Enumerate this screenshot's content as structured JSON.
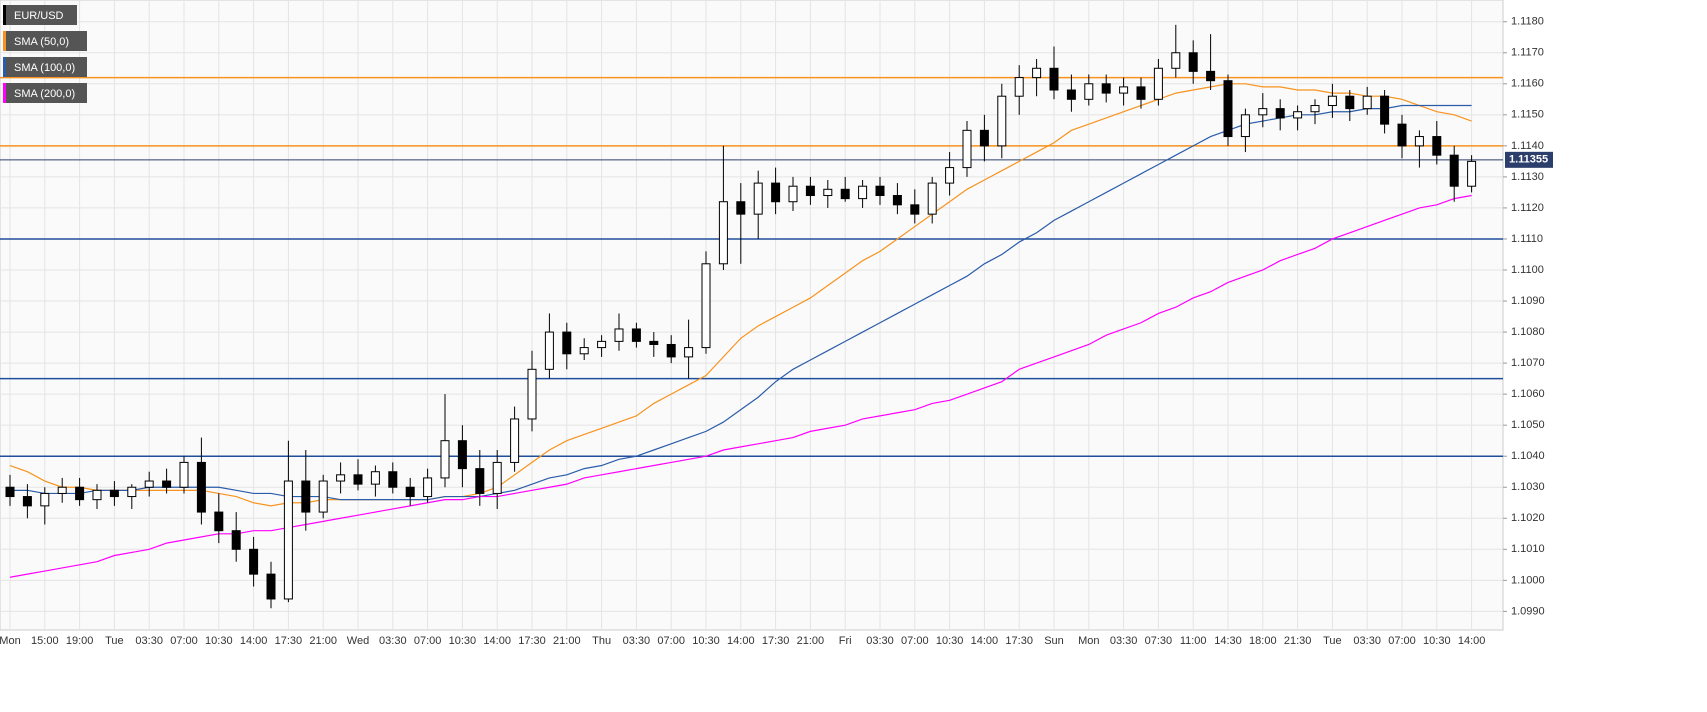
{
  "chart_data": {
    "type": "candlestick",
    "symbol": "EUR/USD",
    "categories": [
      "Mon",
      null,
      "15:00",
      null,
      "19:00",
      null,
      "Tue",
      null,
      "03:30",
      null,
      "07:00",
      null,
      "10:30",
      null,
      "14:00",
      null,
      "17:30",
      null,
      "21:00",
      null,
      "Wed",
      null,
      "03:30",
      null,
      "07:00",
      null,
      "10:30",
      null,
      "14:00",
      null,
      "17:30",
      null,
      "21:00",
      null,
      "Thu",
      null,
      "03:30",
      null,
      "07:00",
      null,
      "10:30",
      null,
      "14:00",
      null,
      "17:30",
      null,
      "21:00",
      null,
      "Fri",
      null,
      "03:30",
      null,
      "07:00",
      null,
      "10:30",
      null,
      "14:00",
      null,
      "17:30",
      null,
      "Sun",
      null,
      "Mon",
      null,
      "03:30",
      null,
      "07:30",
      null,
      "11:00",
      null,
      "14:30",
      null,
      "18:00",
      null,
      "21:30",
      null,
      "Tue",
      null,
      "03:30",
      null,
      "07:00",
      null,
      "10:30",
      null,
      "14:00"
    ],
    "open": [
      1.103,
      1.1027,
      1.1024,
      1.1028,
      1.103,
      1.1026,
      1.1029,
      1.1027,
      1.103,
      1.1032,
      1.103,
      1.1038,
      1.1022,
      1.1016,
      1.101,
      1.1002,
      1.0994,
      1.1032,
      1.1022,
      1.1032,
      1.1034,
      1.1031,
      1.1035,
      1.103,
      1.1027,
      1.1033,
      1.1045,
      1.1036,
      1.1028,
      1.1038,
      1.1052,
      1.1068,
      1.108,
      1.1073,
      1.1075,
      1.1077,
      1.1081,
      1.1077,
      1.1076,
      1.1072,
      1.1075,
      1.1102,
      1.1122,
      1.1118,
      1.1128,
      1.1122,
      1.1127,
      1.1124,
      1.1126,
      1.1123,
      1.1127,
      1.1124,
      1.1121,
      1.1118,
      1.1128,
      1.1133,
      1.1145,
      1.114,
      1.1156,
      1.1162,
      1.1165,
      1.1158,
      1.1155,
      1.116,
      1.1157,
      1.1159,
      1.1155,
      1.1165,
      1.117,
      1.1164,
      1.1161,
      1.1143,
      1.115,
      1.1152,
      1.1149,
      1.1151,
      1.1153,
      1.1156,
      1.1152,
      1.1156,
      1.1147,
      1.114,
      1.1143,
      1.1137,
      1.1127
    ],
    "high": [
      1.1034,
      1.1031,
      1.103,
      1.1033,
      1.1033,
      1.1031,
      1.1032,
      1.1031,
      1.1035,
      1.1036,
      1.104,
      1.1046,
      1.1028,
      1.1022,
      1.1014,
      1.1006,
      1.1045,
      1.1042,
      1.1034,
      1.1038,
      1.1039,
      1.1037,
      1.1038,
      1.1033,
      1.1036,
      1.106,
      1.105,
      1.1042,
      1.1042,
      1.1056,
      1.1074,
      1.1086,
      1.1083,
      1.1078,
      1.1079,
      1.1086,
      1.1083,
      1.108,
      1.1079,
      1.1084,
      1.1106,
      1.114,
      1.1128,
      1.1132,
      1.1133,
      1.113,
      1.113,
      1.1129,
      1.113,
      1.1129,
      1.113,
      1.1128,
      1.1126,
      1.113,
      1.1138,
      1.1148,
      1.115,
      1.116,
      1.1166,
      1.1168,
      1.1172,
      1.1163,
      1.1163,
      1.1163,
      1.1162,
      1.1162,
      1.1168,
      1.1179,
      1.1174,
      1.1176,
      1.1163,
      1.1152,
      1.1157,
      1.1155,
      1.1153,
      1.1155,
      1.116,
      1.1158,
      1.1159,
      1.1158,
      1.115,
      1.1145,
      1.1148,
      1.114,
      1.1137
    ],
    "low": [
      1.1024,
      1.102,
      1.1018,
      1.1025,
      1.1024,
      1.1023,
      1.1024,
      1.1023,
      1.1027,
      1.1028,
      1.1028,
      1.1018,
      1.1012,
      1.1006,
      1.0998,
      1.0991,
      1.0993,
      1.1016,
      1.102,
      1.1028,
      1.1029,
      1.1027,
      1.1028,
      1.1024,
      1.1025,
      1.103,
      1.103,
      1.1024,
      1.1023,
      1.1035,
      1.1048,
      1.1065,
      1.1068,
      1.1071,
      1.1072,
      1.1074,
      1.1075,
      1.1072,
      1.107,
      1.1065,
      1.1073,
      1.11,
      1.1102,
      1.111,
      1.1118,
      1.1119,
      1.1121,
      1.112,
      1.1122,
      1.112,
      1.1121,
      1.1118,
      1.1115,
      1.1115,
      1.1124,
      1.113,
      1.1135,
      1.1136,
      1.115,
      1.1156,
      1.1155,
      1.1151,
      1.1153,
      1.1154,
      1.1153,
      1.1152,
      1.1153,
      1.1162,
      1.116,
      1.1158,
      1.114,
      1.1138,
      1.1146,
      1.1145,
      1.1145,
      1.1147,
      1.1149,
      1.1148,
      1.115,
      1.1144,
      1.1136,
      1.1133,
      1.1134,
      1.1122,
      1.1125
    ],
    "close": [
      1.1027,
      1.1024,
      1.1028,
      1.103,
      1.1026,
      1.1029,
      1.1027,
      1.103,
      1.1032,
      1.103,
      1.1038,
      1.1022,
      1.1016,
      1.101,
      1.1002,
      1.0994,
      1.1032,
      1.1022,
      1.1032,
      1.1034,
      1.1031,
      1.1035,
      1.103,
      1.1027,
      1.1033,
      1.1045,
      1.1036,
      1.1028,
      1.1038,
      1.1052,
      1.1068,
      1.108,
      1.1073,
      1.1075,
      1.1077,
      1.1081,
      1.1077,
      1.1076,
      1.1072,
      1.1075,
      1.1102,
      1.1122,
      1.1118,
      1.1128,
      1.1122,
      1.1127,
      1.1124,
      1.1126,
      1.1123,
      1.1127,
      1.1124,
      1.1121,
      1.1118,
      1.1128,
      1.1133,
      1.1145,
      1.114,
      1.1156,
      1.1162,
      1.1165,
      1.1158,
      1.1155,
      1.116,
      1.1157,
      1.1159,
      1.1155,
      1.1165,
      1.117,
      1.1164,
      1.1161,
      1.1143,
      1.115,
      1.1152,
      1.1149,
      1.1151,
      1.1153,
      1.1156,
      1.1152,
      1.1156,
      1.1147,
      1.114,
      1.1143,
      1.1137,
      1.1127,
      1.1135
    ],
    "series": [
      {
        "name": "SMA (50,0)",
        "color": "#f7931e",
        "values": [
          1.1037,
          1.1035,
          1.1032,
          1.103,
          1.103,
          1.1029,
          1.1029,
          1.1029,
          1.1029,
          1.1029,
          1.1029,
          1.1029,
          1.1028,
          1.1027,
          1.1025,
          1.1024,
          1.1025,
          1.1025,
          1.1026,
          1.1026,
          1.1026,
          1.1026,
          1.1026,
          1.1026,
          1.1026,
          1.1027,
          1.1027,
          1.1028,
          1.103,
          1.1034,
          1.1038,
          1.1042,
          1.1045,
          1.1047,
          1.1049,
          1.1051,
          1.1053,
          1.1057,
          1.106,
          1.1063,
          1.1066,
          1.1072,
          1.1078,
          1.1082,
          1.1085,
          1.1088,
          1.1091,
          1.1095,
          1.1099,
          1.1103,
          1.1106,
          1.111,
          1.1114,
          1.1118,
          1.1122,
          1.1126,
          1.1129,
          1.1132,
          1.1135,
          1.1138,
          1.1141,
          1.1145,
          1.1147,
          1.1149,
          1.1151,
          1.1153,
          1.1155,
          1.1157,
          1.1158,
          1.1159,
          1.116,
          1.116,
          1.1159,
          1.1159,
          1.1158,
          1.1158,
          1.1157,
          1.1157,
          1.1156,
          1.1156,
          1.1155,
          1.1153,
          1.1151,
          1.115,
          1.1148
        ]
      },
      {
        "name": "SMA (100,0)",
        "color": "#2a5caa",
        "values": [
          1.1029,
          1.1029,
          1.1028,
          1.1028,
          1.1028,
          1.1029,
          1.1029,
          1.1029,
          1.103,
          1.103,
          1.103,
          1.103,
          1.103,
          1.1029,
          1.1028,
          1.1028,
          1.1027,
          1.1027,
          1.1027,
          1.1026,
          1.1026,
          1.1026,
          1.1026,
          1.1026,
          1.1026,
          1.1027,
          1.1027,
          1.1027,
          1.1028,
          1.1029,
          1.1031,
          1.1033,
          1.1034,
          1.1036,
          1.1037,
          1.1039,
          1.104,
          1.1042,
          1.1044,
          1.1046,
          1.1048,
          1.1051,
          1.1055,
          1.1059,
          1.1064,
          1.1068,
          1.1071,
          1.1074,
          1.1077,
          1.108,
          1.1083,
          1.1086,
          1.1089,
          1.1092,
          1.1095,
          1.1098,
          1.1102,
          1.1105,
          1.1109,
          1.1112,
          1.1116,
          1.1119,
          1.1122,
          1.1125,
          1.1128,
          1.1131,
          1.1134,
          1.1137,
          1.114,
          1.1143,
          1.1145,
          1.1147,
          1.1148,
          1.1149,
          1.115,
          1.115,
          1.1151,
          1.1151,
          1.1152,
          1.1152,
          1.1153,
          1.1153,
          1.1153,
          1.1153,
          1.1153
        ]
      },
      {
        "name": "SMA (200,0)",
        "color": "#ff00ff",
        "values": [
          1.1001,
          1.1002,
          1.1003,
          1.1004,
          1.1005,
          1.1006,
          1.1008,
          1.1009,
          1.101,
          1.1012,
          1.1013,
          1.1014,
          1.1015,
          1.1015,
          1.1016,
          1.1016,
          1.1017,
          1.1018,
          1.1019,
          1.102,
          1.1021,
          1.1022,
          1.1023,
          1.1024,
          1.1025,
          1.1026,
          1.1026,
          1.1027,
          1.1027,
          1.1028,
          1.1029,
          1.103,
          1.1031,
          1.1033,
          1.1034,
          1.1035,
          1.1036,
          1.1037,
          1.1038,
          1.1039,
          1.104,
          1.1042,
          1.1043,
          1.1044,
          1.1045,
          1.1046,
          1.1048,
          1.1049,
          1.105,
          1.1052,
          1.1053,
          1.1054,
          1.1055,
          1.1057,
          1.1058,
          1.106,
          1.1062,
          1.1064,
          1.1068,
          1.107,
          1.1072,
          1.1074,
          1.1076,
          1.1079,
          1.1081,
          1.1083,
          1.1086,
          1.1088,
          1.1091,
          1.1093,
          1.1096,
          1.1098,
          1.11,
          1.1103,
          1.1105,
          1.1107,
          1.111,
          1.1112,
          1.1114,
          1.1116,
          1.1118,
          1.112,
          1.1121,
          1.1123,
          1.1124
        ]
      }
    ],
    "hlines": [
      {
        "value": 1.1162,
        "color": "#f7931e"
      },
      {
        "value": 1.114,
        "color": "#f7931e"
      },
      {
        "value": 1.111,
        "color": "#1f4e9b"
      },
      {
        "value": 1.1065,
        "color": "#1f4e9b"
      },
      {
        "value": 1.104,
        "color": "#1f4e9b"
      }
    ],
    "last_price": 1.11355,
    "ylim": [
      1.0984,
      1.1187
    ],
    "yticks": [
      {
        "value": 1.099,
        "label": "1.0990"
      },
      {
        "value": 1.1,
        "label": "1.1000"
      },
      {
        "value": 1.101,
        "label": "1.1010"
      },
      {
        "value": 1.102,
        "label": "1.1020"
      },
      {
        "value": 1.103,
        "label": "1.1030"
      },
      {
        "value": 1.104,
        "label": "1.1040"
      },
      {
        "value": 1.105,
        "label": "1.1050"
      },
      {
        "value": 1.106,
        "label": "1.1060"
      },
      {
        "value": 1.107,
        "label": "1.1070"
      },
      {
        "value": 1.108,
        "label": "1.1080"
      },
      {
        "value": 1.109,
        "label": "1.1090"
      },
      {
        "value": 1.11,
        "label": "1.1100"
      },
      {
        "value": 1.111,
        "label": "1.1110"
      },
      {
        "value": 1.112,
        "label": "1.1120"
      },
      {
        "value": 1.113,
        "label": "1.1130"
      },
      {
        "value": 1.114,
        "label": "1.1140"
      },
      {
        "value": 1.115,
        "label": "1.1150"
      },
      {
        "value": 1.116,
        "label": "1.1160"
      },
      {
        "value": 1.117,
        "label": "1.1170"
      },
      {
        "value": 1.118,
        "label": "1.1180"
      }
    ],
    "grid": true
  }
}
